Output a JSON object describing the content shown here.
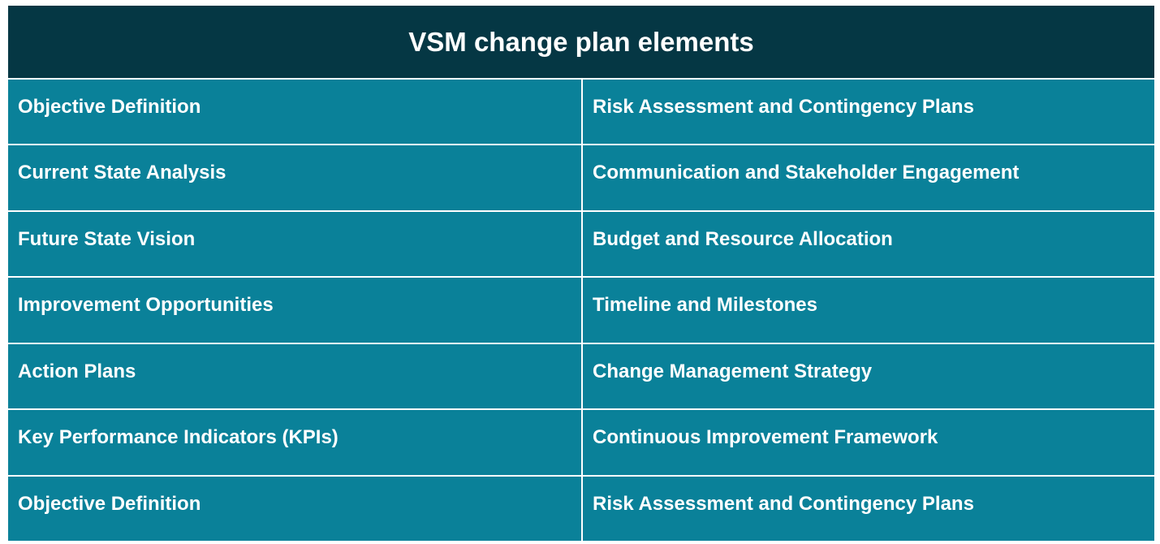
{
  "table": {
    "title": "VSM change plan elements",
    "rows": [
      {
        "left": "Objective Definition",
        "right": "Risk Assessment and Contingency Plans"
      },
      {
        "left": "Current State Analysis",
        "right": "Communication and Stakeholder Engagement"
      },
      {
        "left": "Future State Vision",
        "right": "Budget and Resource Allocation"
      },
      {
        "left": "Improvement Opportunities",
        "right": "Timeline and Milestones"
      },
      {
        "left": "Action Plans",
        "right": "Change Management Strategy"
      },
      {
        "left": "Key Performance Indicators (KPIs)",
        "right": "Continuous Improvement Framework"
      },
      {
        "left": "Objective Definition",
        "right": "Risk Assessment and Contingency Plans"
      }
    ]
  },
  "colors": {
    "header_bg": "#053744",
    "cell_bg": "#0a8199",
    "text": "#ffffff",
    "gridline": "#ffffff"
  }
}
